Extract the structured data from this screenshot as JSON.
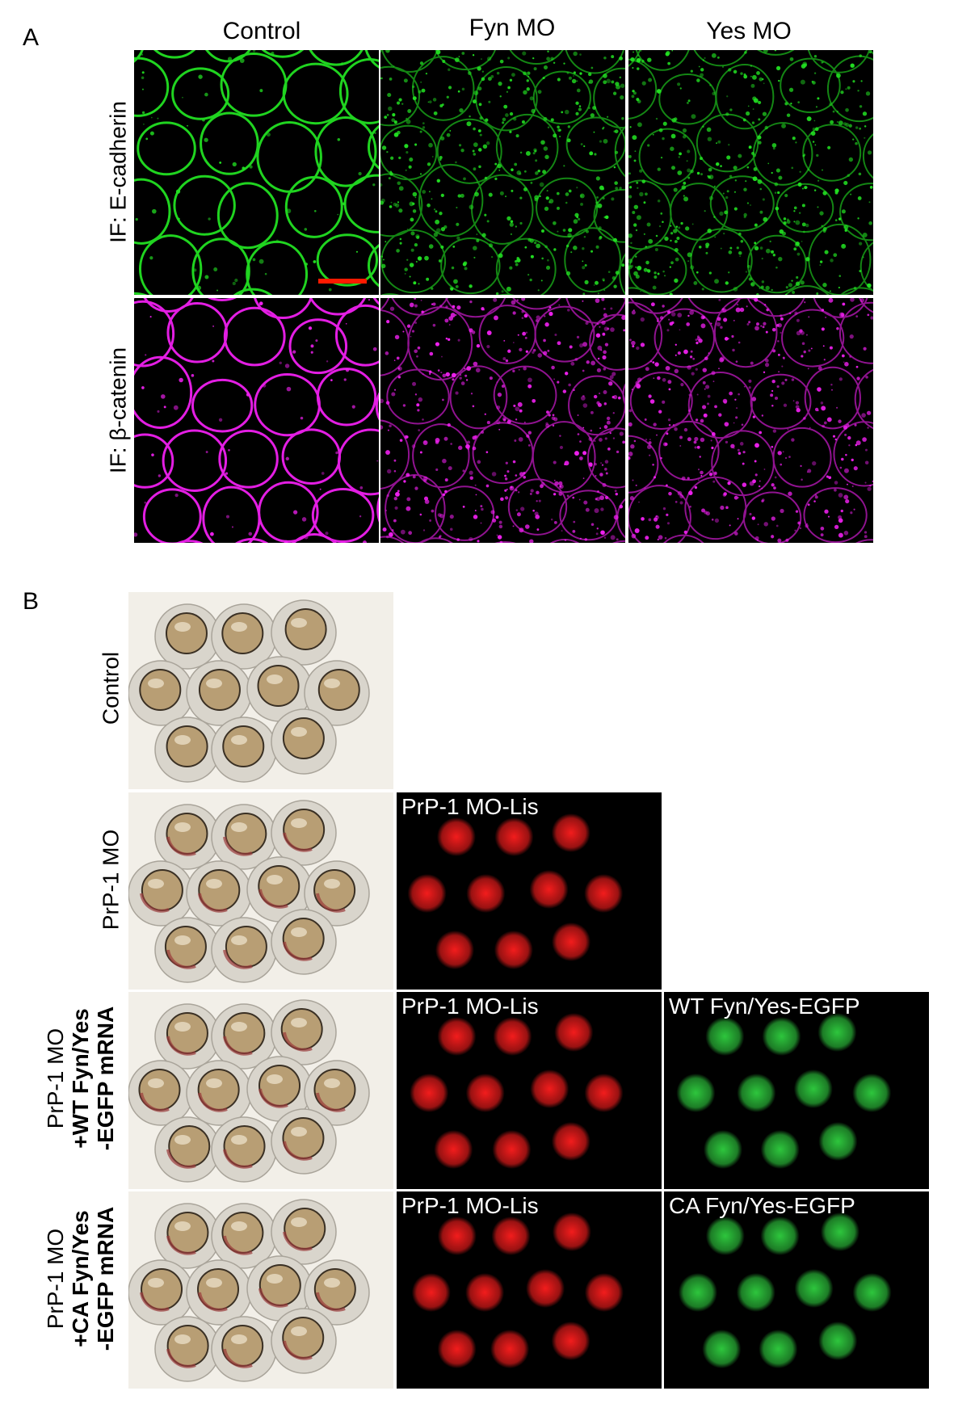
{
  "panel_a": {
    "letter": "A",
    "columns": [
      "Control",
      "Fyn MO",
      "Yes MO"
    ],
    "rows": [
      "IF: E-cadherin",
      "IF: β-catenin"
    ],
    "colors": {
      "ecadherin": "#22e022",
      "catenin": "#f020f0",
      "scalebar": "#ff1a00"
    }
  },
  "panel_b": {
    "letter": "B",
    "rows": [
      {
        "label_lines": [
          "Control"
        ],
        "fluor_labels": []
      },
      {
        "label_lines": [
          "PrP-1 MO"
        ],
        "fluor_labels": [
          "PrP-1 MO-Lis"
        ]
      },
      {
        "label_lines": [
          "PrP-1 MO",
          "+WT Fyn/Yes",
          "-EGFP mRNA"
        ],
        "fluor_labels": [
          "PrP-1 MO-Lis",
          "WT Fyn/Yes-EGFP"
        ]
      },
      {
        "label_lines": [
          "PrP-1 MO",
          "+CA Fyn/Yes",
          "-EGFP mRNA"
        ],
        "fluor_labels": [
          "PrP-1 MO-Lis",
          "CA Fyn/Yes-EGFP"
        ]
      }
    ],
    "colors": {
      "red": "#ff1e1e",
      "green": "#30d040"
    }
  }
}
